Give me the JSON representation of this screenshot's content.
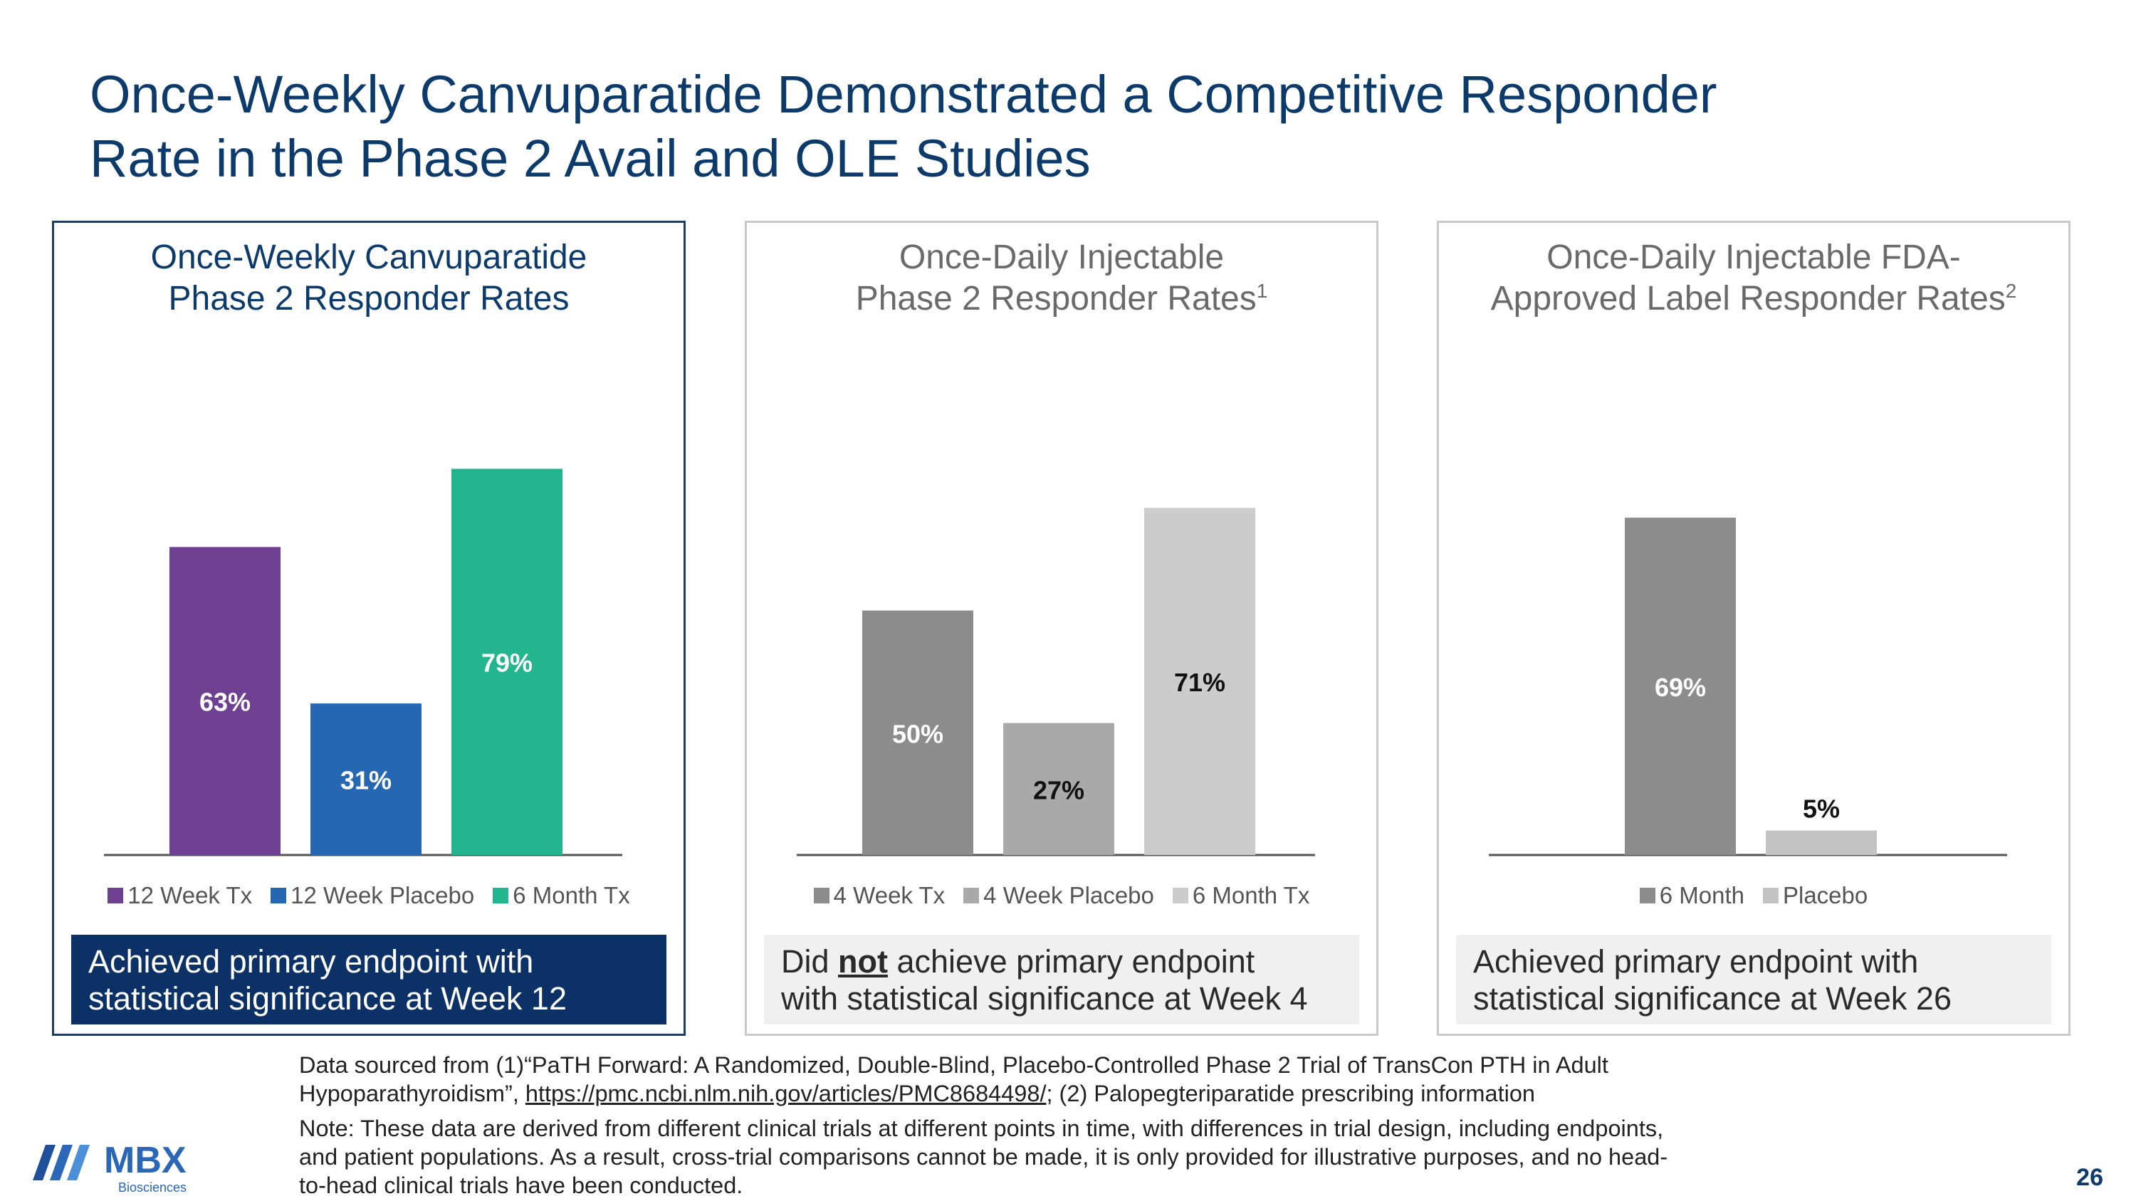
{
  "title": {
    "line1": "Once-Weekly Canvuparatide Demonstrated a Competitive Responder",
    "line2": "Rate in the Phase 2 Avail and OLE Studies"
  },
  "chart_data": [
    {
      "type": "bar",
      "title": "Once-Weekly Canvuparatide Phase 2 Responder Rates",
      "title_lines": [
        "Once-Weekly Canvuparatide",
        "Phase 2 Responder Rates"
      ],
      "superscript": "",
      "categories": [
        "12 Week Tx",
        "12 Week Placebo",
        "6 Month Tx"
      ],
      "values": [
        63,
        31,
        79
      ],
      "labels": [
        "63%",
        "31%",
        "79%"
      ],
      "colors": [
        "#6f3f92",
        "#2667b4",
        "#22b58e"
      ],
      "label_colors": [
        "#ffffff",
        "#ffffff",
        "#ffffff"
      ],
      "ylim": [
        0,
        100
      ],
      "xlabel": "",
      "ylabel": "",
      "grid": false,
      "legend": "bottom",
      "outcome": [
        "Achieved primary endpoint with",
        "statistical significance at Week 12"
      ],
      "outcome_style": "dark"
    },
    {
      "type": "bar",
      "title": "Once-Daily Injectable Phase 2 Responder Rates",
      "title_lines": [
        "Once-Daily Injectable",
        "Phase 2 Responder Rates"
      ],
      "superscript": "1",
      "categories": [
        "4 Week Tx",
        "4 Week Placebo",
        "6 Month Tx"
      ],
      "values": [
        50,
        27,
        71
      ],
      "labels": [
        "50%",
        "27%",
        "71%"
      ],
      "colors": [
        "#8c8c8c",
        "#a9a9a9",
        "#cccccc"
      ],
      "label_colors": [
        "#ffffff",
        "#111111",
        "#111111"
      ],
      "ylim": [
        0,
        100
      ],
      "xlabel": "",
      "ylabel": "",
      "grid": false,
      "legend": "bottom",
      "outcome_pre": "Did ",
      "outcome_emph": "not",
      "outcome_post": " achieve primary endpoint",
      "outcome_line2": "with statistical significance at Week 4",
      "outcome_style": "light"
    },
    {
      "type": "bar",
      "title": "Once-Daily Injectable FDA-Approved Label Responder Rates",
      "title_lines": [
        "Once-Daily Injectable FDA-",
        "Approved Label Responder Rates"
      ],
      "superscript": "2",
      "categories": [
        "6 Month",
        "Placebo"
      ],
      "values": [
        69,
        5
      ],
      "labels": [
        "69%",
        "5%"
      ],
      "colors": [
        "#8c8c8c",
        "#c2c2c2"
      ],
      "label_colors": [
        "#ffffff",
        "#111111"
      ],
      "ylim": [
        0,
        100
      ],
      "xlabel": "",
      "ylabel": "",
      "grid": false,
      "legend": "bottom",
      "outcome": [
        "Achieved primary endpoint with",
        "statistical significance at Week 26"
      ],
      "outcome_style": "light"
    }
  ],
  "footnotes": {
    "source_line1": "Data sourced from (1)“PaTH Forward: A Randomized, Double-Blind, Placebo-Controlled Phase 2 Trial of TransCon PTH in Adult",
    "source_line2_pre": "Hypoparathyroidism”, ",
    "source_link": "https://pmc.ncbi.nlm.nih.gov/articles/PMC8684498/",
    "source_line2_post": "; (2) Palopegteriparatide prescribing information",
    "note_line1": "Note: These data are derived from different clinical trials at different points in time, with differences in trial design, including endpoints,",
    "note_line2": "and patient populations. As a result, cross-trial comparisons cannot be made, it is only provided for illustrative purposes, and no head-",
    "note_line3": "to-head clinical trials have been conducted."
  },
  "logo": {
    "name": "MBX",
    "sub": "Biosciences"
  },
  "page_number": "26"
}
